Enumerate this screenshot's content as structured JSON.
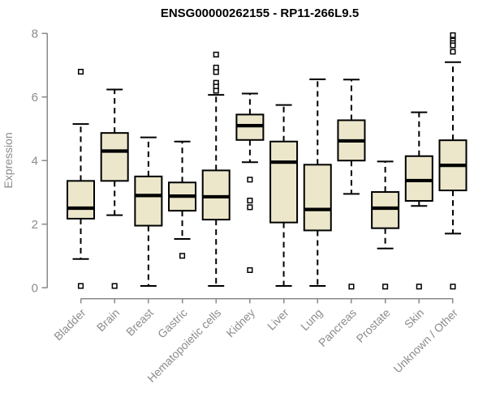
{
  "chart_data": {
    "type": "boxplot",
    "title": "ENSG00000262155 - RP11-266L9.5",
    "ylabel": "Expression",
    "xlabel": "",
    "ylim": [
      0,
      8
    ],
    "yticks": [
      0,
      2,
      4,
      6,
      8
    ],
    "grid": false,
    "legend": false,
    "categories": [
      "Bladder",
      "Brain",
      "Breast",
      "Gastric",
      "Hematopoietic cells",
      "Kidney",
      "Liver",
      "Lung",
      "Pancreas",
      "Prostate",
      "Skin",
      "Unknown / Other"
    ],
    "series": [
      {
        "category": "Bladder",
        "low": 0.9,
        "q1": 2.17,
        "median": 2.5,
        "q3": 3.36,
        "high": 5.15,
        "outliers": [
          6.8,
          0.05
        ]
      },
      {
        "category": "Brain",
        "low": 2.28,
        "q1": 3.36,
        "median": 4.3,
        "q3": 4.87,
        "high": 6.24,
        "outliers": [
          0.05
        ]
      },
      {
        "category": "Breast",
        "low": 0.05,
        "q1": 1.95,
        "median": 2.9,
        "q3": 3.5,
        "high": 4.73,
        "outliers": []
      },
      {
        "category": "Gastric",
        "low": 1.53,
        "q1": 2.42,
        "median": 2.88,
        "q3": 3.31,
        "high": 4.6,
        "outliers": [
          1.0
        ]
      },
      {
        "category": "Hematopoietic cells",
        "low": 0.05,
        "q1": 2.14,
        "median": 2.86,
        "q3": 3.69,
        "high": 6.07,
        "outliers": [
          7.34,
          6.93,
          6.79,
          6.45,
          6.33,
          6.2
        ]
      },
      {
        "category": "Kidney",
        "low": 3.95,
        "q1": 4.65,
        "median": 5.1,
        "q3": 5.45,
        "high": 6.11,
        "outliers": [
          3.4,
          2.74,
          2.53,
          0.55
        ]
      },
      {
        "category": "Liver",
        "low": 0.05,
        "q1": 2.05,
        "median": 3.95,
        "q3": 4.6,
        "high": 5.75,
        "outliers": []
      },
      {
        "category": "Lung",
        "low": 0.05,
        "q1": 1.8,
        "median": 2.46,
        "q3": 3.87,
        "high": 6.56,
        "outliers": []
      },
      {
        "category": "Pancreas",
        "low": 2.95,
        "q1": 4.0,
        "median": 4.62,
        "q3": 5.27,
        "high": 6.55,
        "outliers": [
          0.03
        ]
      },
      {
        "category": "Prostate",
        "low": 1.23,
        "q1": 1.87,
        "median": 2.5,
        "q3": 3.01,
        "high": 3.97,
        "outliers": [
          0.03
        ]
      },
      {
        "category": "Skin",
        "low": 2.57,
        "q1": 2.73,
        "median": 3.37,
        "q3": 4.14,
        "high": 5.52,
        "outliers": [
          0.03
        ]
      },
      {
        "category": "Unknown / Other",
        "low": 1.7,
        "q1": 3.06,
        "median": 3.85,
        "q3": 4.64,
        "high": 7.1,
        "outliers": [
          7.95,
          7.78,
          7.7,
          7.63,
          7.43,
          0.03
        ]
      }
    ],
    "colors": {
      "box_fill": "#ECE7CB",
      "box_border": "#000000",
      "median": "#000000",
      "whisker": "#000000",
      "outlier_stroke": "#000000",
      "axis_line": "#8A8A8A",
      "tick_label": "#8C8C8C",
      "title": "#000000",
      "background": "#FFFFFF"
    }
  }
}
